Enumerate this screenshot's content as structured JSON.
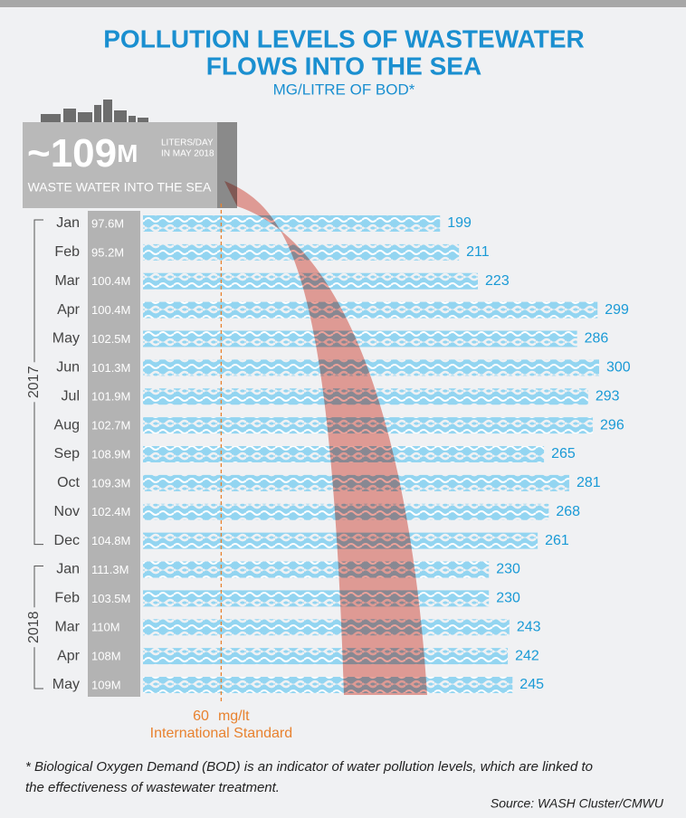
{
  "chart_data": {
    "type": "bar",
    "title": [
      "POLLUTION LEVELS OF WASTEWATER",
      "FLOWS INTO THE SEA"
    ],
    "subtitle": "MG/LITRE OF BOD*",
    "groups": [
      {
        "name": "2017",
        "categories": [
          "Jan",
          "Feb",
          "Mar",
          "Apr",
          "May",
          "Jun",
          "Jul",
          "Aug",
          "Sep",
          "Oct",
          "Nov",
          "Dec"
        ]
      },
      {
        "name": "2018",
        "categories": [
          "Jan",
          "Feb",
          "Mar",
          "Apr",
          "May"
        ]
      }
    ],
    "values": [
      199,
      211,
      223,
      299,
      286,
      300,
      293,
      296,
      265,
      281,
      268,
      261,
      230,
      230,
      243,
      242,
      245
    ],
    "volume_labels": [
      "97.6M",
      "95.2M",
      "100.4M",
      "100.4M",
      "102.5M",
      "101.3M",
      "101.9M",
      "102.7M",
      "108.9M",
      "109.3M",
      "102.4M",
      "104.8M",
      "111.3M",
      "103.5M",
      "110M",
      "108M",
      "109M"
    ],
    "color": "#93d5f1",
    "label_color": "#1a9ad6",
    "xlim": [
      0,
      340
    ],
    "reference": {
      "value": 60,
      "unit": "mg/lt",
      "note": "International Standard",
      "color": "#e8822f"
    },
    "callout": {
      "amount": "~109",
      "unit": "M",
      "note": [
        "LITERS/DAY",
        "IN MAY 2018"
      ],
      "caption": "WASTE WATER INTO THE SEA"
    },
    "footnote": [
      "* Biological Oxygen Demand (BOD) is an indicator of water pollution levels, which are linked to",
      "the effectiveness of wastewater treatment."
    ],
    "source": "Source: WASH Cluster/CMWU"
  }
}
